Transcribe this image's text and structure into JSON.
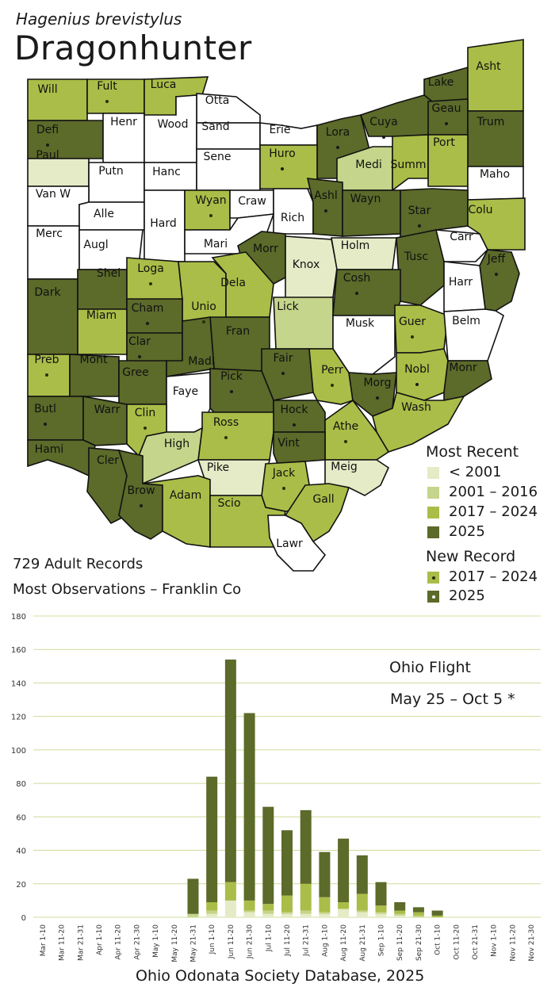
{
  "header": {
    "scientific_name": "Hagenius brevistylus",
    "common_name": "Dragonhunter"
  },
  "colors": {
    "none": "#ffffff",
    "pre2001": "#e4ebc6",
    "y2001_2016": "#c5d58b",
    "y2017_2024": "#aabd48",
    "y2025": "#5c6a2a",
    "grid": "#cfdc9c"
  },
  "map": {
    "counties": [
      {
        "name": "Will",
        "cat": "y2017_2024",
        "dot": null
      },
      {
        "name": "Fult",
        "cat": "y2017_2024",
        "dot": "y2017_2024"
      },
      {
        "name": "Luca",
        "cat": "y2017_2024",
        "dot": null
      },
      {
        "name": "Otta",
        "cat": "none",
        "dot": null
      },
      {
        "name": "Lake",
        "cat": "y2025",
        "dot": null
      },
      {
        "name": "Asht",
        "cat": "y2017_2024",
        "dot": null
      },
      {
        "name": "Defi",
        "cat": "y2025",
        "dot": "y2025"
      },
      {
        "name": "Henr",
        "cat": "none",
        "dot": null
      },
      {
        "name": "Wood",
        "cat": "none",
        "dot": null
      },
      {
        "name": "Sand",
        "cat": "none",
        "dot": null
      },
      {
        "name": "Erie",
        "cat": "none",
        "dot": null
      },
      {
        "name": "Lora",
        "cat": "y2025",
        "dot": "y2025"
      },
      {
        "name": "Cuya",
        "cat": "y2025",
        "dot": "y2025"
      },
      {
        "name": "Geau",
        "cat": "y2025",
        "dot": "y2025"
      },
      {
        "name": "Trum",
        "cat": "y2025",
        "dot": null
      },
      {
        "name": "Paul",
        "cat": "pre2001",
        "dot": null
      },
      {
        "name": "Putn",
        "cat": "none",
        "dot": null
      },
      {
        "name": "Hanc",
        "cat": "none",
        "dot": null
      },
      {
        "name": "Sene",
        "cat": "none",
        "dot": null
      },
      {
        "name": "Huro",
        "cat": "y2017_2024",
        "dot": "y2025"
      },
      {
        "name": "Medi",
        "cat": "y2001_2016",
        "dot": null
      },
      {
        "name": "Summ",
        "cat": "y2017_2024",
        "dot": null
      },
      {
        "name": "Port",
        "cat": "y2017_2024",
        "dot": null
      },
      {
        "name": "Maho",
        "cat": "none",
        "dot": null
      },
      {
        "name": "Van W",
        "cat": "none",
        "dot": null
      },
      {
        "name": "Alle",
        "cat": "none",
        "dot": null
      },
      {
        "name": "Hard",
        "cat": "none",
        "dot": null
      },
      {
        "name": "Wyan",
        "cat": "y2017_2024",
        "dot": "y2017_2024"
      },
      {
        "name": "Craw",
        "cat": "none",
        "dot": null
      },
      {
        "name": "Rich",
        "cat": "none",
        "dot": null
      },
      {
        "name": "Ashl",
        "cat": "y2025",
        "dot": "y2025"
      },
      {
        "name": "Wayn",
        "cat": "y2025",
        "dot": null
      },
      {
        "name": "Star",
        "cat": "y2025",
        "dot": "y2025"
      },
      {
        "name": "Colu",
        "cat": "y2017_2024",
        "dot": null
      },
      {
        "name": "Merc",
        "cat": "none",
        "dot": null
      },
      {
        "name": "Augl",
        "cat": "none",
        "dot": null
      },
      {
        "name": "Mari",
        "cat": "none",
        "dot": null
      },
      {
        "name": "Morr",
        "cat": "y2025",
        "dot": null
      },
      {
        "name": "Knox",
        "cat": "pre2001",
        "dot": null
      },
      {
        "name": "Holm",
        "cat": "pre2001",
        "dot": null
      },
      {
        "name": "Tusc",
        "cat": "y2025",
        "dot": null
      },
      {
        "name": "Carr",
        "cat": "none",
        "dot": null
      },
      {
        "name": "Jeff",
        "cat": "y2025",
        "dot": "y2025"
      },
      {
        "name": "Dark",
        "cat": "y2025",
        "dot": null
      },
      {
        "name": "Shel",
        "cat": "y2025",
        "dot": null
      },
      {
        "name": "Loga",
        "cat": "y2017_2024",
        "dot": "y2017_2024"
      },
      {
        "name": "Unio",
        "cat": "y2017_2024",
        "dot": "y2017_2024"
      },
      {
        "name": "Dela",
        "cat": "y2017_2024",
        "dot": null
      },
      {
        "name": "Lick",
        "cat": "y2001_2016",
        "dot": null
      },
      {
        "name": "Cosh",
        "cat": "y2025",
        "dot": "y2025"
      },
      {
        "name": "Harr",
        "cat": "none",
        "dot": null
      },
      {
        "name": "Miam",
        "cat": "y2017_2024",
        "dot": null
      },
      {
        "name": "Cham",
        "cat": "y2025",
        "dot": "y2025"
      },
      {
        "name": "Musk",
        "cat": "none",
        "dot": null
      },
      {
        "name": "Guer",
        "cat": "y2017_2024",
        "dot": "y2017_2024"
      },
      {
        "name": "Belm",
        "cat": "none",
        "dot": null
      },
      {
        "name": "Clar",
        "cat": "y2025",
        "dot": "y2025"
      },
      {
        "name": "Fran",
        "cat": "y2025",
        "dot": null
      },
      {
        "name": "Preb",
        "cat": "y2017_2024",
        "dot": "y2017_2024"
      },
      {
        "name": "Mont",
        "cat": "y2025",
        "dot": null
      },
      {
        "name": "Gree",
        "cat": "y2025",
        "dot": null
      },
      {
        "name": "Madi",
        "cat": "y2025",
        "dot": null
      },
      {
        "name": "Fair",
        "cat": "y2025",
        "dot": "y2025"
      },
      {
        "name": "Perr",
        "cat": "y2017_2024",
        "dot": "y2017_2024"
      },
      {
        "name": "Morg",
        "cat": "y2025",
        "dot": "y2025"
      },
      {
        "name": "Nobl",
        "cat": "y2017_2024",
        "dot": "y2025"
      },
      {
        "name": "Monr",
        "cat": "y2025",
        "dot": null
      },
      {
        "name": "Faye",
        "cat": "none",
        "dot": null
      },
      {
        "name": "Pick",
        "cat": "y2025",
        "dot": "y2025"
      },
      {
        "name": "Butl",
        "cat": "y2025",
        "dot": "y2025"
      },
      {
        "name": "Warr",
        "cat": "y2025",
        "dot": null
      },
      {
        "name": "Clin",
        "cat": "y2017_2024",
        "dot": "y2017_2024"
      },
      {
        "name": "Hock",
        "cat": "y2025",
        "dot": "y2025"
      },
      {
        "name": "Wash",
        "cat": "y2017_2024",
        "dot": null
      },
      {
        "name": "Ross",
        "cat": "y2017_2024",
        "dot": "y2017_2024"
      },
      {
        "name": "Athe",
        "cat": "y2017_2024",
        "dot": "y2017_2024"
      },
      {
        "name": "Hami",
        "cat": "y2025",
        "dot": null
      },
      {
        "name": "Cler",
        "cat": "y2025",
        "dot": null
      },
      {
        "name": "High",
        "cat": "y2001_2016",
        "dot": null
      },
      {
        "name": "Vint",
        "cat": "y2025",
        "dot": null
      },
      {
        "name": "Pike",
        "cat": "pre2001",
        "dot": null
      },
      {
        "name": "Meig",
        "cat": "pre2001",
        "dot": null
      },
      {
        "name": "Jack",
        "cat": "y2017_2024",
        "dot": "y2017_2024"
      },
      {
        "name": "Brow",
        "cat": "y2025",
        "dot": "y2025"
      },
      {
        "name": "Adam",
        "cat": "y2017_2024",
        "dot": null
      },
      {
        "name": "Scio",
        "cat": "y2017_2024",
        "dot": null
      },
      {
        "name": "Gall",
        "cat": "y2017_2024",
        "dot": null
      },
      {
        "name": "Lawr",
        "cat": "none",
        "dot": null
      }
    ]
  },
  "legend": {
    "recent_title": "Most Recent",
    "recent_items": [
      {
        "label": "< 2001",
        "cat": "pre2001"
      },
      {
        "label": "2001 – 2016",
        "cat": "y2001_2016"
      },
      {
        "label": "2017 – 2024",
        "cat": "y2017_2024"
      },
      {
        "label": "2025",
        "cat": "y2025"
      }
    ],
    "new_title": "New Record",
    "new_items": [
      {
        "label": "2017 – 2024",
        "cat": "y2017_2024"
      },
      {
        "label": "2025",
        "cat": "y2025"
      }
    ]
  },
  "stats": {
    "records": "729 Adult Records",
    "most_obs": "Most Observations – Franklin Co"
  },
  "flight": {
    "title": "Ohio Flight",
    "range": "May 25 – Oct 5 *"
  },
  "footer": "Ohio Odonata Society Database, 2025",
  "chart_data": {
    "type": "bar",
    "stacked": true,
    "ylim": [
      0,
      180
    ],
    "yticks": [
      0,
      20,
      40,
      60,
      80,
      100,
      120,
      140,
      160,
      180
    ],
    "grid": true,
    "categories": [
      "Mar 1-10",
      "Mar 11-20",
      "Mar 21-31",
      "Apr 1-10",
      "Apr 11-20",
      "Apr 21-30",
      "May 1-10",
      "May 11-20",
      "May 21-31",
      "Jun 1-10",
      "Jun 11-20",
      "Jun 21-30",
      "Jul 1-10",
      "Jul 11-20",
      "Jul 21-31",
      "Aug 1-10",
      "Aug 11-20",
      "Aug 21-31",
      "Sep 1-10",
      "Sep 11-20",
      "Sep 21-30",
      "Oct 1-10",
      "Oct 11-20",
      "Oct 21-31",
      "Nov 1-10",
      "Nov 11-20",
      "Nov 21-30"
    ],
    "series": [
      {
        "color_key": "pre2001",
        "values": [
          0,
          0,
          0,
          0,
          0,
          0,
          0,
          0,
          0,
          2,
          10,
          3,
          2,
          2,
          2,
          2,
          5,
          3,
          2,
          1,
          0,
          0,
          0,
          0,
          0,
          0,
          0
        ]
      },
      {
        "color_key": "y2001_2016",
        "values": [
          0,
          0,
          0,
          0,
          0,
          0,
          0,
          0,
          2,
          2,
          0,
          1,
          2,
          1,
          2,
          1,
          0,
          1,
          1,
          1,
          1,
          0,
          0,
          0,
          0,
          0,
          0
        ]
      },
      {
        "color_key": "y2017_2024",
        "values": [
          0,
          0,
          0,
          0,
          0,
          0,
          0,
          0,
          0,
          5,
          11,
          6,
          4,
          10,
          16,
          9,
          4,
          10,
          4,
          2,
          2,
          1,
          0,
          0,
          0,
          0,
          0
        ]
      },
      {
        "color_key": "y2025",
        "values": [
          0,
          0,
          0,
          0,
          0,
          0,
          0,
          0,
          21,
          75,
          133,
          112,
          58,
          39,
          44,
          27,
          38,
          23,
          14,
          5,
          3,
          3,
          0,
          0,
          0,
          0,
          0
        ]
      }
    ]
  }
}
